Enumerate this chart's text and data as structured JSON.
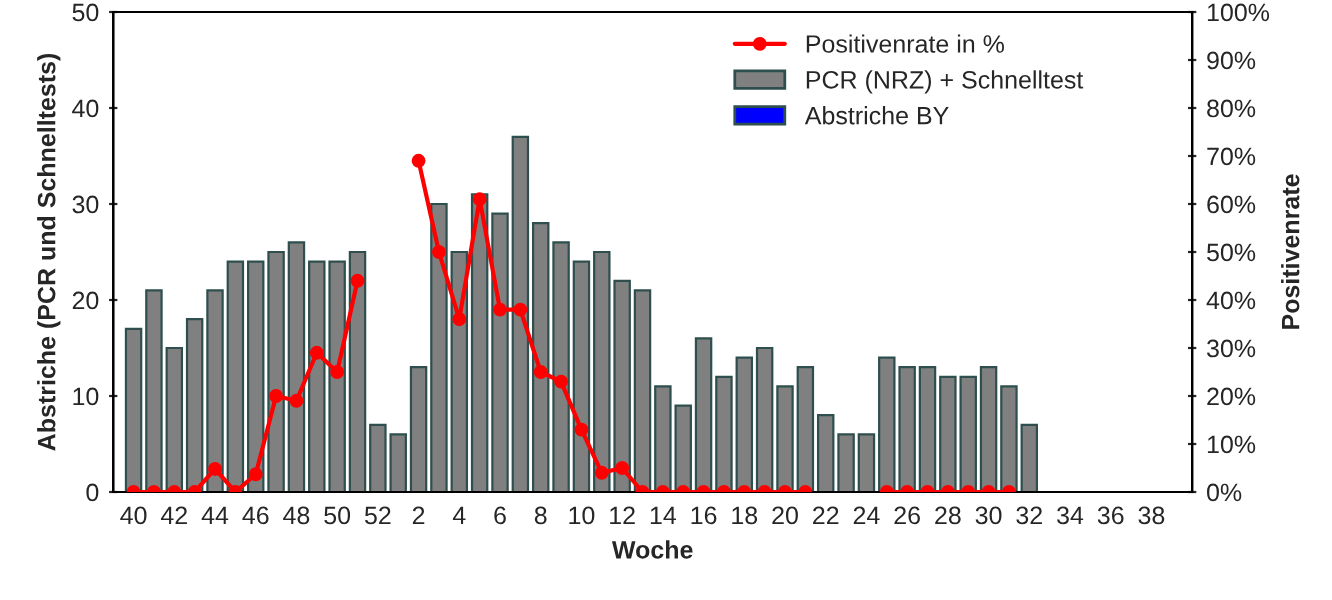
{
  "chart_data": {
    "type": "bar",
    "xlabel": "Woche",
    "ylabel": "Abstriche (PCR und Schnelltests)",
    "y2label": "Positivenrate",
    "categories": [
      "40",
      null,
      "42",
      null,
      "44",
      null,
      "46",
      null,
      "48",
      null,
      "50",
      null,
      "52",
      null,
      "2",
      null,
      "4",
      null,
      "6",
      null,
      "8",
      null,
      "10",
      null,
      "12",
      null,
      "14",
      null,
      "16",
      null,
      "18",
      null,
      "20",
      null,
      "22",
      null,
      "24",
      null,
      "26",
      null,
      "28",
      null,
      "30",
      null,
      "32",
      null,
      "34",
      null,
      "36",
      null,
      "38",
      null
    ],
    "ylim": [
      0,
      50
    ],
    "yticks": [
      0,
      10,
      20,
      30,
      40,
      50
    ],
    "y2lim": [
      0,
      100
    ],
    "y2ticks": [
      {
        "value": 0,
        "label": "0%"
      },
      {
        "value": 10,
        "label": "10%"
      },
      {
        "value": 20,
        "label": "20%"
      },
      {
        "value": 30,
        "label": "30%"
      },
      {
        "value": 40,
        "label": "40%"
      },
      {
        "value": 50,
        "label": "50%"
      },
      {
        "value": 60,
        "label": "60%"
      },
      {
        "value": 70,
        "label": "70%"
      },
      {
        "value": 80,
        "label": "80%"
      },
      {
        "value": 90,
        "label": "90%"
      },
      {
        "value": 100,
        "label": "100%"
      }
    ],
    "grid": false,
    "legend": "top right",
    "series": [
      {
        "name": "Positivenrate in %",
        "type": "line",
        "axis": "y2",
        "color": "#ff0000",
        "marker": "circle",
        "line_style": "solid",
        "values": [
          0,
          0,
          0,
          0,
          4.8,
          0,
          3.7,
          20,
          19,
          29,
          25,
          44,
          null,
          null,
          69,
          50,
          36,
          61,
          38,
          38,
          25,
          23,
          13,
          4,
          5,
          0,
          0,
          0,
          0,
          0,
          0,
          0,
          0,
          0,
          null,
          null,
          null,
          0,
          0,
          0,
          0,
          0,
          0,
          0,
          null,
          null,
          null,
          null,
          null,
          null,
          null,
          null
        ]
      },
      {
        "name": "PCR (NRZ) + Schnelltest",
        "color": "#808080",
        "values": [
          17,
          21,
          15,
          18,
          21,
          24,
          24,
          25,
          26,
          24,
          24,
          25,
          7,
          6,
          13,
          30,
          25,
          31,
          29,
          37,
          28,
          26,
          24,
          25,
          22,
          21,
          11,
          9,
          16,
          12,
          14,
          15,
          11,
          13,
          8,
          6,
          6,
          14,
          13,
          13,
          12,
          12,
          13,
          11,
          7,
          null,
          null,
          null,
          null,
          null,
          null,
          null
        ]
      },
      {
        "name": "Abstriche BY",
        "color": "#0000ff",
        "values": [
          null,
          null,
          null,
          null,
          null,
          null,
          null,
          null,
          null,
          null,
          null,
          null,
          null,
          null,
          null,
          null,
          null,
          null,
          null,
          null,
          null,
          null,
          null,
          null,
          null,
          null,
          null,
          null,
          null,
          null,
          null,
          null,
          null,
          null,
          null,
          null,
          null,
          null,
          null,
          null,
          null,
          null,
          null,
          null,
          null,
          null,
          null,
          null,
          null,
          null,
          null,
          null
        ]
      }
    ]
  }
}
